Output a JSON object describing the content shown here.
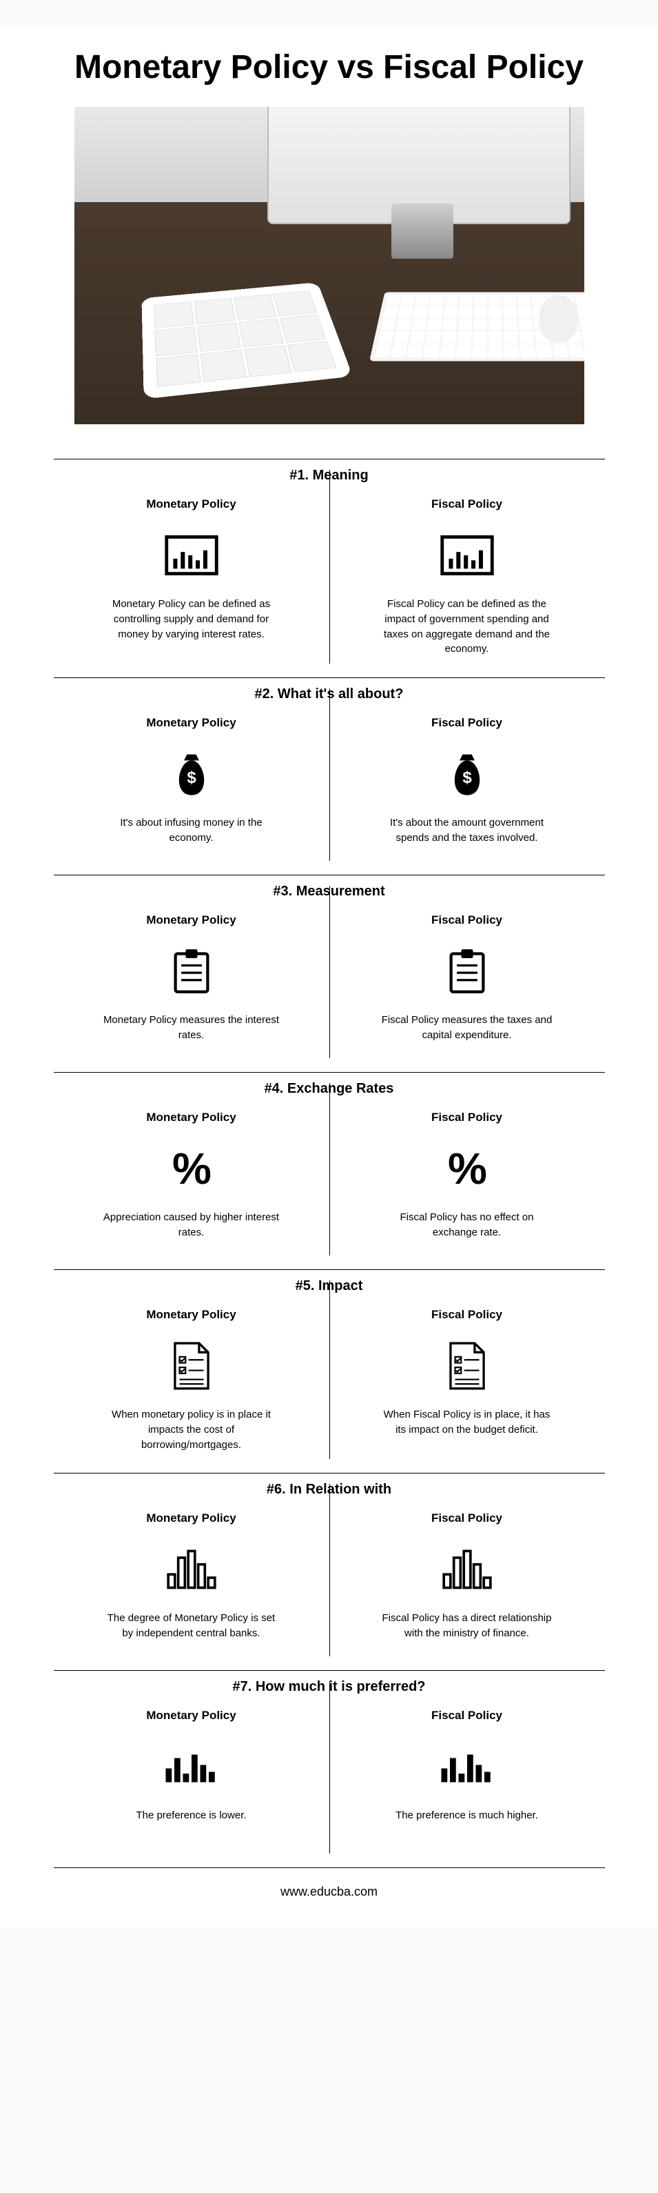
{
  "title": "Monetary Policy vs Fiscal Policy",
  "leftLabel": "Monetary Policy",
  "rightLabel": "Fiscal Policy",
  "sections": [
    {
      "title": "#1. Meaning",
      "icon": "chart-box",
      "left": "Monetary Policy can be defined as controlling supply and demand for money by varying interest rates.",
      "right": "Fiscal Policy can be defined as the impact of government spending and taxes on aggregate demand and the economy."
    },
    {
      "title": "#2. What it's all about?",
      "icon": "money-bag",
      "left": "It's about infusing money in the economy.",
      "right": "It's about the amount government spends and the taxes involved."
    },
    {
      "title": "#3. Measurement",
      "icon": "clipboard",
      "left": "Monetary Policy measures the interest rates.",
      "right": "Fiscal Policy measures the taxes and capital expenditure."
    },
    {
      "title": "#4. Exchange Rates",
      "icon": "percent",
      "left": "Appreciation caused by higher interest rates.",
      "right": "Fiscal Policy has no effect on exchange rate."
    },
    {
      "title": "#5. Impact",
      "icon": "checklist-doc",
      "left": "When monetary policy is in place it impacts the cost of borrowing/mortgages.",
      "right": "When Fiscal Policy is in place, it has its impact on the budget deficit."
    },
    {
      "title": "#6. In Relation with",
      "icon": "bar-outline",
      "left": "The degree of Monetary Policy is set by independent central banks.",
      "right": "Fiscal Policy has a direct relationship with the ministry of finance."
    },
    {
      "title": "#7. How much it is preferred?",
      "icon": "bar-solid",
      "left": "The preference is lower.",
      "right": "The preference is much higher."
    }
  ],
  "footer": "www.educba.com",
  "colors": {
    "text": "#000000",
    "background": "#ffffff",
    "divider": "#000000"
  }
}
